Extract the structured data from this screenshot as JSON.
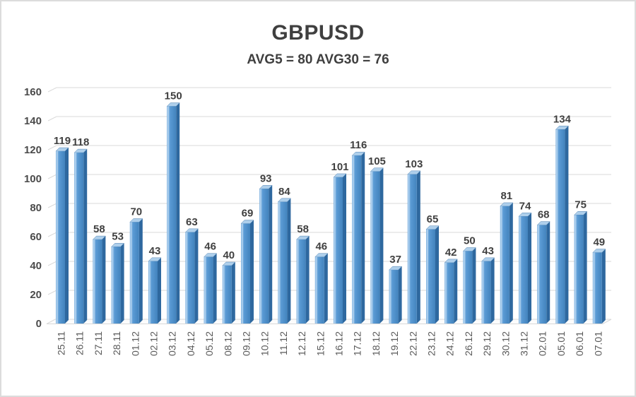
{
  "window": {
    "background": "#ffffff",
    "border_color": "#dcdcdc"
  },
  "chart": {
    "title": "GBPUSD",
    "subtitle": "AVG5 = 80 AVG30 = 76"
  },
  "chart_data": {
    "type": "bar",
    "style": "3d-column",
    "title": "GBPUSD",
    "subtitle": "AVG5 = 80 AVG30 = 76",
    "categories": [
      "25.11",
      "26.11",
      "27.11",
      "28.11",
      "01.12",
      "02.12",
      "03.12",
      "04.12",
      "05.12",
      "08.12",
      "09.12",
      "10.12",
      "11.12",
      "12.12",
      "15.12",
      "16.12",
      "17.12",
      "18.12",
      "19.12",
      "22.12",
      "23.12",
      "24.12",
      "26.12",
      "29.12",
      "30.12",
      "31.12",
      "02.01",
      "05.01",
      "06.01",
      "07.01"
    ],
    "values": [
      119,
      118,
      58,
      53,
      70,
      43,
      150,
      63,
      46,
      40,
      69,
      93,
      84,
      58,
      46,
      101,
      116,
      105,
      37,
      103,
      65,
      42,
      50,
      43,
      81,
      74,
      68,
      134,
      75,
      49
    ],
    "avg5": 80,
    "avg30": 76,
    "xlabel": "",
    "ylabel": "",
    "ylim": [
      0,
      160
    ],
    "ytick_step": 20,
    "grid": true,
    "legend": "none",
    "colors": {
      "bar_main": "#5b9bd5",
      "bar_highlight": "#c0dcf4",
      "bar_shadow": "#4283bd",
      "bar_side": "#2e689f",
      "bar_top": "#aecfeb",
      "gridline": "#d9d9d9",
      "value_label": "#404040",
      "axis_label": "#595959",
      "title_text": "#3f3f3f"
    }
  }
}
